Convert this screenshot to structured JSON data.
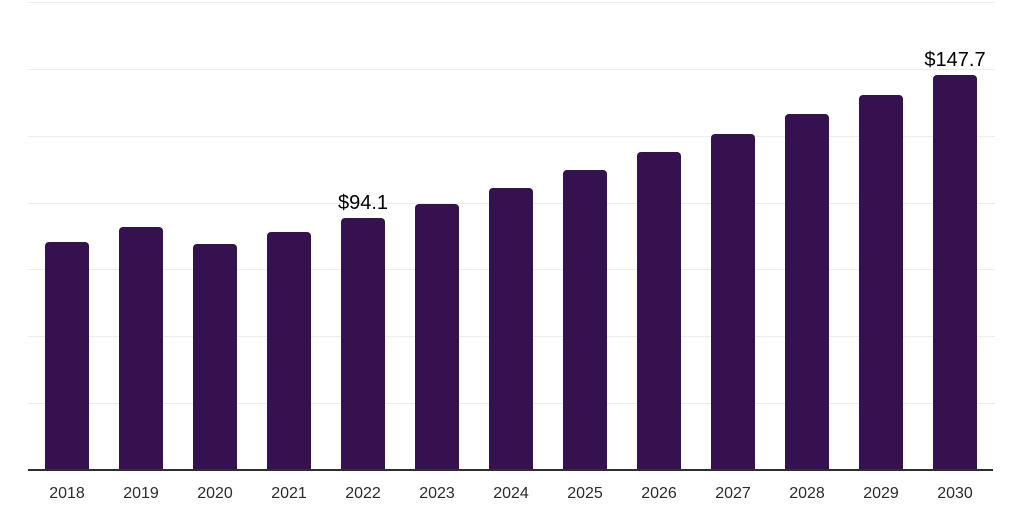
{
  "chart_data": {
    "type": "bar",
    "title": "",
    "xlabel": "",
    "ylabel": "",
    "categories": [
      "2018",
      "2019",
      "2020",
      "2021",
      "2022",
      "2023",
      "2024",
      "2025",
      "2026",
      "2027",
      "2028",
      "2029",
      "2030"
    ],
    "values": [
      85.2,
      91.0,
      84.6,
      88.9,
      94.1,
      99.6,
      105.4,
      112.0,
      118.8,
      125.5,
      133.0,
      140.2,
      147.7
    ],
    "point_labels": {
      "2022": "$94.1",
      "2030": "$147.7"
    },
    "ylim": [
      0,
      175
    ],
    "gridline_step": 25,
    "grid": true,
    "legend_position": "none",
    "colors": {
      "bar": "#36114F",
      "axis_line": "#2e2e2e",
      "gridline": "#ececec",
      "tick_label": "#2b2b2b",
      "value_label": "#000000"
    }
  }
}
